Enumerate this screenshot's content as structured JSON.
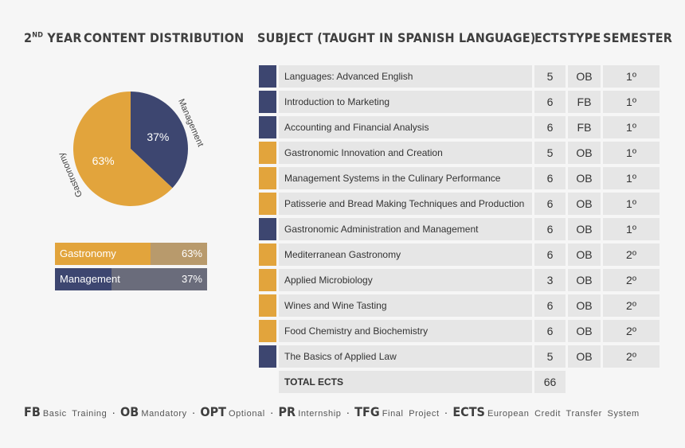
{
  "headers": {
    "year_main": "2",
    "year_sup": "ND",
    "year_rest": " YEAR",
    "content_distribution": "CONTENT DISTRIBUTION",
    "subject": "SUBJECT (TAUGHT IN SPANISH LANGUAGE)",
    "ects": "ECTS",
    "type": "TYPE",
    "semester": "SEMESTER"
  },
  "colors": {
    "gastronomy": "#e2a43c",
    "management": "#3d4670",
    "gastronomy_rest": "#b89a6c",
    "management_rest": "#6a6c7b"
  },
  "chart_data": {
    "type": "pie",
    "slices": [
      {
        "name": "Management",
        "value": 37,
        "label": "37%"
      },
      {
        "name": "Gastronomy",
        "value": 63,
        "label": "63%"
      }
    ]
  },
  "legend": [
    {
      "name": "Gastronomy",
      "pct": "63%",
      "value": 63
    },
    {
      "name": "Management",
      "pct": "37%",
      "value": 37
    }
  ],
  "subjects": [
    {
      "name": "Languages: Advanced English",
      "ects": "5",
      "type": "OB",
      "semester": "1º",
      "area": "management"
    },
    {
      "name": "Introduction to Marketing",
      "ects": "6",
      "type": "FB",
      "semester": "1º",
      "area": "management"
    },
    {
      "name": "Accounting and Financial Analysis",
      "ects": "6",
      "type": "FB",
      "semester": "1º",
      "area": "management"
    },
    {
      "name": "Gastronomic Innovation and Creation",
      "ects": "5",
      "type": "OB",
      "semester": "1º",
      "area": "gastronomy"
    },
    {
      "name": "Management Systems in the Culinary Performance",
      "ects": "6",
      "type": "OB",
      "semester": "1º",
      "area": "gastronomy"
    },
    {
      "name": "Patisserie and Bread Making Techniques and Production",
      "ects": "6",
      "type": "OB",
      "semester": "1º",
      "area": "gastronomy"
    },
    {
      "name": "Gastronomic Administration and Management",
      "ects": "6",
      "type": "OB",
      "semester": "1º",
      "area": "management"
    },
    {
      "name": "Mediterranean Gastronomy",
      "ects": "6",
      "type": "OB",
      "semester": "2º",
      "area": "gastronomy"
    },
    {
      "name": "Applied Microbiology",
      "ects": "3",
      "type": "OB",
      "semester": "2º",
      "area": "gastronomy"
    },
    {
      "name": "Wines and Wine Tasting",
      "ects": "6",
      "type": "OB",
      "semester": "2º",
      "area": "gastronomy"
    },
    {
      "name": "Food Chemistry and Biochemistry",
      "ects": "6",
      "type": "OB",
      "semester": "2º",
      "area": "gastronomy"
    },
    {
      "name": "The Basics of Applied Law",
      "ects": "5",
      "type": "OB",
      "semester": "2º",
      "area": "management"
    }
  ],
  "total": {
    "label": "TOTAL ECTS",
    "value": "66"
  },
  "footer": [
    {
      "abbr": "FB",
      "desc": "Basic Training"
    },
    {
      "abbr": "OB",
      "desc": "Mandatory"
    },
    {
      "abbr": "OPT",
      "desc": "Optional"
    },
    {
      "abbr": "PR",
      "desc": "Internship"
    },
    {
      "abbr": "TFG",
      "desc": "Final Project"
    },
    {
      "abbr": "ECTS",
      "desc": "European Credit Transfer System"
    }
  ],
  "footer_separator": "·"
}
